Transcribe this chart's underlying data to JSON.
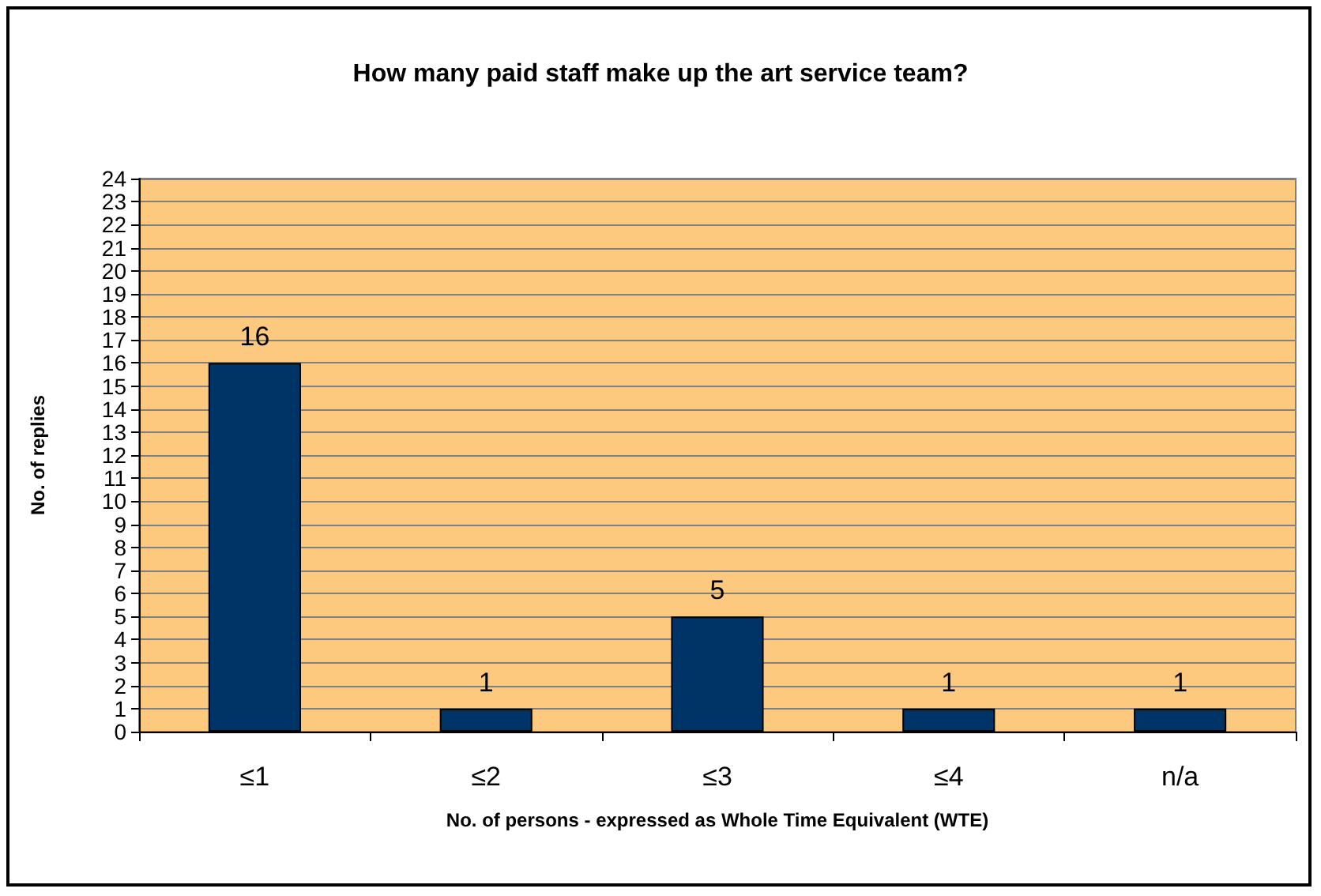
{
  "chart_data": {
    "type": "bar",
    "title": "How many paid staff make up the art service team?",
    "xlabel": "No. of persons - expressed as Whole Time Equivalent (WTE)",
    "ylabel": "No. of replies",
    "categories": [
      "≤1",
      "≤2",
      "≤3",
      "≤4",
      "n/a"
    ],
    "values": [
      16,
      1,
      5,
      1,
      1
    ],
    "color": "#003366",
    "ylim": [
      0,
      24
    ],
    "yticks": [
      0,
      1,
      2,
      3,
      4,
      5,
      6,
      7,
      8,
      9,
      10,
      11,
      12,
      13,
      14,
      15,
      16,
      17,
      18,
      19,
      20,
      21,
      22,
      23,
      24
    ],
    "grid": "y",
    "data_labels": true
  }
}
